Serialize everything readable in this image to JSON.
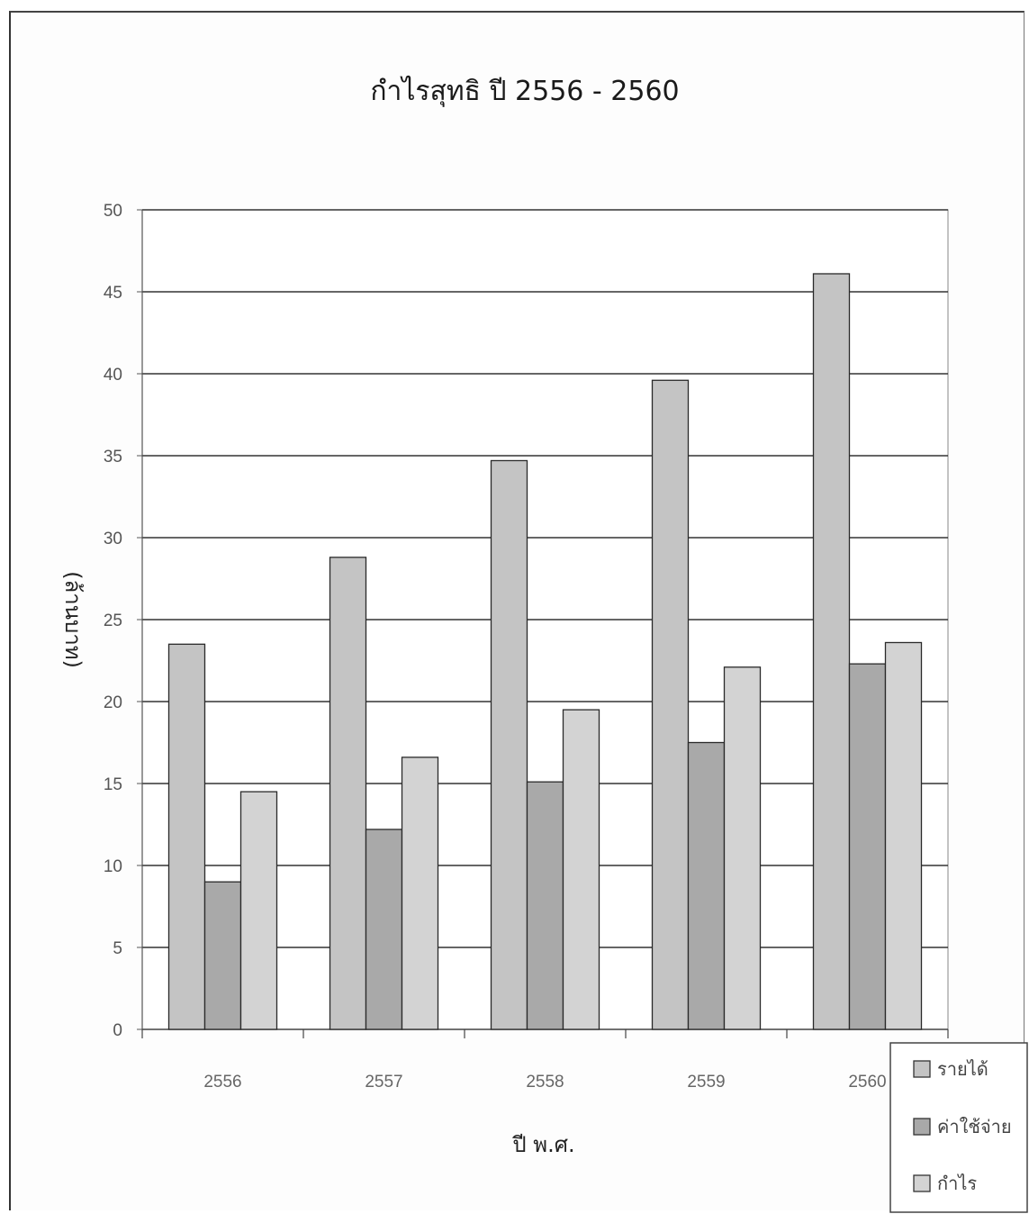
{
  "chart_data": {
    "type": "bar",
    "title": "กำไรสุทธิ ปี  2556 - 2560",
    "xlabel": "ปี พ.ศ.",
    "ylabel": "(ล้านบาท)",
    "categories": [
      "2556",
      "2557",
      "2558",
      "2559",
      "2560"
    ],
    "series": [
      {
        "name": "รายได้",
        "values": [
          23.5,
          28.8,
          34.7,
          39.6,
          46.1
        ],
        "color": "#c4c4c4"
      },
      {
        "name": "ค่าใช้จ่าย",
        "values": [
          9.0,
          12.2,
          15.1,
          17.5,
          22.3
        ],
        "color": "#a9a9a9"
      },
      {
        "name": "กำไร",
        "values": [
          14.5,
          16.6,
          19.5,
          22.1,
          23.6
        ],
        "color": "#d3d3d3"
      }
    ],
    "ylim": [
      0,
      50
    ],
    "yticks": [
      0,
      5,
      10,
      15,
      20,
      25,
      30,
      35,
      40,
      45,
      50
    ],
    "grid": true,
    "legend_position": "bottom-right"
  }
}
